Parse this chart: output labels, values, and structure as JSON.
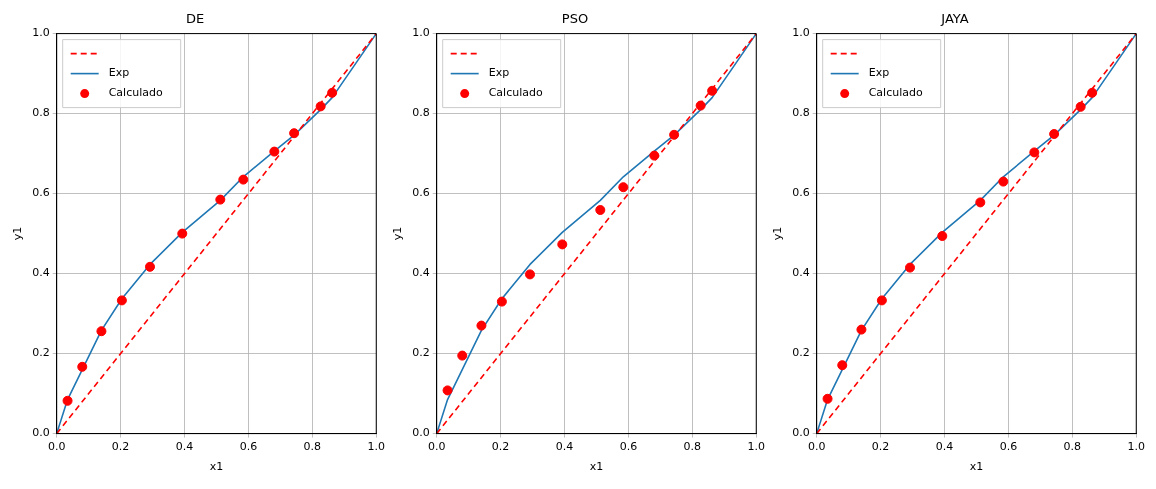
{
  "chart_data": [
    {
      "type": "line",
      "title": "DE",
      "xlabel": "x1",
      "ylabel": "y1",
      "xlim": [
        0,
        1
      ],
      "ylim": [
        0,
        1
      ],
      "xticks": [
        {
          "value": 0,
          "label": "0.0"
        },
        {
          "value": 0.2,
          "label": "0.2"
        },
        {
          "value": 0.4,
          "label": "0.4"
        },
        {
          "value": 0.6,
          "label": "0.6"
        },
        {
          "value": 0.8,
          "label": "0.8"
        },
        {
          "value": 1,
          "label": "1.0"
        }
      ],
      "yticks": [
        {
          "value": 0,
          "label": "0.0"
        },
        {
          "value": 0.2,
          "label": "0.2"
        },
        {
          "value": 0.4,
          "label": "0.4"
        },
        {
          "value": 0.6,
          "label": "0.6"
        },
        {
          "value": 0.8,
          "label": "0.8"
        },
        {
          "value": 1,
          "label": "1.0"
        }
      ],
      "grid": true,
      "legend": "top left",
      "series": [
        {
          "type": "line",
          "color": "#ff0000",
          "line_style": "dashed",
          "x": [
            0,
            1
          ],
          "values": [
            0,
            1
          ]
        },
        {
          "name": "Exp",
          "type": "line",
          "color": "#1f77b4",
          "line_style": "solid",
          "x": [
            0,
            0.034,
            0.08,
            0.14,
            0.204,
            0.292,
            0.393,
            0.512,
            0.584,
            0.681,
            0.743,
            0.826,
            0.862,
            1
          ],
          "values": [
            0,
            0.085,
            0.16,
            0.258,
            0.337,
            0.423,
            0.503,
            0.583,
            0.642,
            0.706,
            0.746,
            0.81,
            0.84,
            1
          ]
        },
        {
          "name": "Calculado",
          "type": "scatter",
          "color": "#ff0000",
          "marker": "circle",
          "x": [
            0.034,
            0.08,
            0.14,
            0.204,
            0.292,
            0.393,
            0.512,
            0.584,
            0.681,
            0.743,
            0.826,
            0.862
          ],
          "values": [
            0.082,
            0.167,
            0.256,
            0.333,
            0.417,
            0.5,
            0.585,
            0.635,
            0.705,
            0.751,
            0.818,
            0.852
          ]
        }
      ]
    },
    {
      "type": "line",
      "title": "PSO",
      "xlabel": "x1",
      "ylabel": "y1",
      "xlim": [
        0,
        1
      ],
      "ylim": [
        0,
        1
      ],
      "xticks": [
        {
          "value": 0,
          "label": "0.0"
        },
        {
          "value": 0.2,
          "label": "0.2"
        },
        {
          "value": 0.4,
          "label": "0.4"
        },
        {
          "value": 0.6,
          "label": "0.6"
        },
        {
          "value": 0.8,
          "label": "0.8"
        },
        {
          "value": 1,
          "label": "1.0"
        }
      ],
      "yticks": [
        {
          "value": 0,
          "label": "0.0"
        },
        {
          "value": 0.2,
          "label": "0.2"
        },
        {
          "value": 0.4,
          "label": "0.4"
        },
        {
          "value": 0.6,
          "label": "0.6"
        },
        {
          "value": 0.8,
          "label": "0.8"
        },
        {
          "value": 1,
          "label": "1.0"
        }
      ],
      "grid": true,
      "legend": "top left",
      "series": [
        {
          "type": "line",
          "color": "#ff0000",
          "line_style": "dashed",
          "x": [
            0,
            1
          ],
          "values": [
            0,
            1
          ]
        },
        {
          "name": "Exp",
          "type": "line",
          "color": "#1f77b4",
          "line_style": "solid",
          "x": [
            0,
            0.034,
            0.08,
            0.14,
            0.204,
            0.292,
            0.393,
            0.512,
            0.584,
            0.681,
            0.743,
            0.826,
            0.862,
            1
          ],
          "values": [
            0,
            0.085,
            0.16,
            0.258,
            0.337,
            0.423,
            0.503,
            0.583,
            0.642,
            0.706,
            0.746,
            0.81,
            0.84,
            1
          ]
        },
        {
          "name": "Calculado",
          "type": "scatter",
          "color": "#ff0000",
          "marker": "circle",
          "x": [
            0.034,
            0.08,
            0.14,
            0.204,
            0.292,
            0.393,
            0.512,
            0.584,
            0.681,
            0.743,
            0.826,
            0.862
          ],
          "values": [
            0.108,
            0.195,
            0.27,
            0.33,
            0.398,
            0.473,
            0.559,
            0.616,
            0.695,
            0.747,
            0.82,
            0.857
          ]
        }
      ]
    },
    {
      "type": "line",
      "title": "JAYA",
      "xlabel": "x1",
      "ylabel": "y1",
      "xlim": [
        0,
        1
      ],
      "ylim": [
        0,
        1
      ],
      "xticks": [
        {
          "value": 0,
          "label": "0.0"
        },
        {
          "value": 0.2,
          "label": "0.2"
        },
        {
          "value": 0.4,
          "label": "0.4"
        },
        {
          "value": 0.6,
          "label": "0.6"
        },
        {
          "value": 0.8,
          "label": "0.8"
        },
        {
          "value": 1,
          "label": "1.0"
        }
      ],
      "yticks": [
        {
          "value": 0,
          "label": "0.0"
        },
        {
          "value": 0.2,
          "label": "0.2"
        },
        {
          "value": 0.4,
          "label": "0.4"
        },
        {
          "value": 0.6,
          "label": "0.6"
        },
        {
          "value": 0.8,
          "label": "0.8"
        },
        {
          "value": 1,
          "label": "1.0"
        }
      ],
      "grid": true,
      "legend": "top left",
      "series": [
        {
          "type": "line",
          "color": "#ff0000",
          "line_style": "dashed",
          "x": [
            0,
            1
          ],
          "values": [
            0,
            1
          ]
        },
        {
          "name": "Exp",
          "type": "line",
          "color": "#1f77b4",
          "line_style": "solid",
          "x": [
            0,
            0.034,
            0.08,
            0.14,
            0.204,
            0.292,
            0.393,
            0.512,
            0.584,
            0.681,
            0.743,
            0.826,
            0.862,
            1
          ],
          "values": [
            0,
            0.085,
            0.16,
            0.258,
            0.337,
            0.423,
            0.503,
            0.583,
            0.642,
            0.706,
            0.746,
            0.81,
            0.84,
            1
          ]
        },
        {
          "name": "Calculado",
          "type": "scatter",
          "color": "#ff0000",
          "marker": "circle",
          "x": [
            0.034,
            0.08,
            0.14,
            0.204,
            0.292,
            0.393,
            0.512,
            0.584,
            0.681,
            0.743,
            0.826,
            0.862
          ],
          "values": [
            0.087,
            0.171,
            0.26,
            0.333,
            0.415,
            0.494,
            0.578,
            0.63,
            0.703,
            0.749,
            0.817,
            0.852
          ]
        }
      ]
    }
  ]
}
